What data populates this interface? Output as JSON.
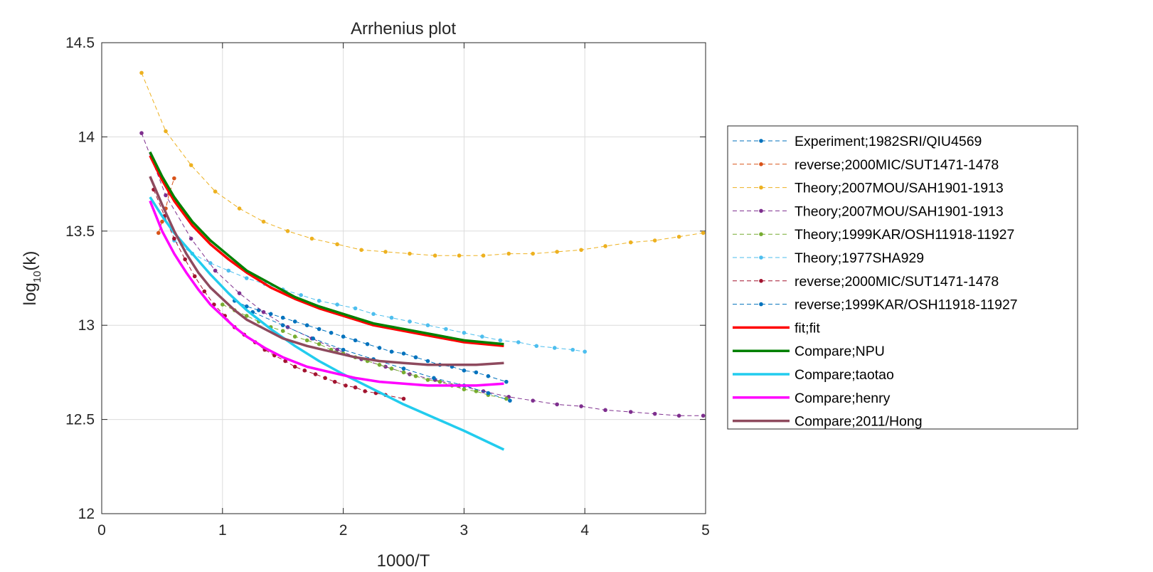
{
  "chart_data": {
    "type": "line",
    "title": "Arrhenius plot",
    "xlabel": "1000/T",
    "ylabel_base": "log",
    "ylabel_sub": "10",
    "ylabel_rest": "(k)",
    "xlim": [
      0,
      5
    ],
    "ylim": [
      12,
      14.5
    ],
    "xticks": [
      "0",
      "1",
      "2",
      "3",
      "4",
      "5"
    ],
    "yticks": [
      "12",
      "12.5",
      "13",
      "13.5",
      "14",
      "14.5"
    ],
    "grid": true,
    "legend_position": "right-outside",
    "series": [
      {
        "name": "Experiment;1982SRI/QIU4569",
        "color": "#0072BD",
        "style": "dashed-marker",
        "points": [
          [
            1.1,
            13.13
          ],
          [
            1.2,
            13.1
          ],
          [
            1.3,
            13.08
          ],
          [
            1.4,
            13.06
          ],
          [
            1.5,
            13.04
          ],
          [
            1.6,
            13.02
          ],
          [
            1.7,
            13.0
          ],
          [
            1.8,
            12.98
          ],
          [
            1.9,
            12.96
          ],
          [
            2.0,
            12.94
          ],
          [
            2.1,
            12.92
          ],
          [
            2.2,
            12.9
          ],
          [
            2.3,
            12.88
          ],
          [
            2.4,
            12.86
          ],
          [
            2.5,
            12.85
          ],
          [
            2.6,
            12.83
          ],
          [
            2.7,
            12.81
          ],
          [
            2.8,
            12.79
          ],
          [
            2.9,
            12.78
          ],
          [
            3.0,
            12.76
          ],
          [
            3.1,
            12.75
          ],
          [
            3.2,
            12.73
          ],
          [
            3.35,
            12.7
          ]
        ]
      },
      {
        "name": "reverse;2000MIC/SUT1471-1478",
        "color": "#D95319",
        "style": "dashed-marker",
        "points": [
          [
            0.47,
            13.49
          ],
          [
            0.5,
            13.55
          ],
          [
            0.53,
            13.62
          ],
          [
            0.56,
            13.7
          ],
          [
            0.6,
            13.78
          ]
        ]
      },
      {
        "name": "Theory;2007MOU/SAH1901-1913",
        "color": "#EDB120",
        "style": "dashed-marker",
        "points": [
          [
            0.33,
            14.34
          ],
          [
            0.53,
            14.03
          ],
          [
            0.74,
            13.85
          ],
          [
            0.94,
            13.71
          ],
          [
            1.14,
            13.62
          ],
          [
            1.34,
            13.55
          ],
          [
            1.54,
            13.5
          ],
          [
            1.74,
            13.46
          ],
          [
            1.95,
            13.43
          ],
          [
            2.15,
            13.4
          ],
          [
            2.35,
            13.39
          ],
          [
            2.55,
            13.38
          ],
          [
            2.76,
            13.37
          ],
          [
            2.96,
            13.37
          ],
          [
            3.16,
            13.37
          ],
          [
            3.37,
            13.38
          ],
          [
            3.57,
            13.38
          ],
          [
            3.77,
            13.39
          ],
          [
            3.97,
            13.4
          ],
          [
            4.17,
            13.42
          ],
          [
            4.38,
            13.44
          ],
          [
            4.58,
            13.45
          ],
          [
            4.78,
            13.47
          ],
          [
            4.98,
            13.49
          ]
        ]
      },
      {
        "name": "Theory;2007MOU/SAH1901-1913",
        "color": "#7E2F8E",
        "style": "dashed-marker",
        "points": [
          [
            0.33,
            14.02
          ],
          [
            0.53,
            13.69
          ],
          [
            0.74,
            13.46
          ],
          [
            0.94,
            13.29
          ],
          [
            1.14,
            13.17
          ],
          [
            1.34,
            13.07
          ],
          [
            1.54,
            12.99
          ],
          [
            1.74,
            12.93
          ],
          [
            1.95,
            12.87
          ],
          [
            2.15,
            12.82
          ],
          [
            2.35,
            12.78
          ],
          [
            2.55,
            12.74
          ],
          [
            2.76,
            12.71
          ],
          [
            2.96,
            12.68
          ],
          [
            3.16,
            12.65
          ],
          [
            3.37,
            12.62
          ],
          [
            3.57,
            12.6
          ],
          [
            3.77,
            12.58
          ],
          [
            3.97,
            12.57
          ],
          [
            4.17,
            12.55
          ],
          [
            4.38,
            12.54
          ],
          [
            4.58,
            12.53
          ],
          [
            4.78,
            12.52
          ],
          [
            4.98,
            12.52
          ]
        ]
      },
      {
        "name": "Theory;1999KAR/OSH11918-11927",
        "color": "#77AC30",
        "style": "dashed-marker",
        "points": [
          [
            1.0,
            13.11
          ],
          [
            1.1,
            13.08
          ],
          [
            1.2,
            13.05
          ],
          [
            1.3,
            13.02
          ],
          [
            1.4,
            12.99
          ],
          [
            1.5,
            12.97
          ],
          [
            1.6,
            12.94
          ],
          [
            1.7,
            12.92
          ],
          [
            1.8,
            12.9
          ],
          [
            1.9,
            12.87
          ],
          [
            2.0,
            12.85
          ],
          [
            2.1,
            12.83
          ],
          [
            2.2,
            12.81
          ],
          [
            2.3,
            12.79
          ],
          [
            2.4,
            12.77
          ],
          [
            2.5,
            12.75
          ],
          [
            2.6,
            12.73
          ],
          [
            2.7,
            12.71
          ],
          [
            2.8,
            12.7
          ],
          [
            2.9,
            12.68
          ],
          [
            3.0,
            12.66
          ],
          [
            3.1,
            12.65
          ],
          [
            3.2,
            12.63
          ],
          [
            3.35,
            12.61
          ]
        ]
      },
      {
        "name": "Theory;1977SHA929",
        "color": "#4DBEEE",
        "style": "dashed-marker",
        "points": [
          [
            0.6,
            13.45
          ],
          [
            0.75,
            13.38
          ],
          [
            0.9,
            13.33
          ],
          [
            1.05,
            13.29
          ],
          [
            1.2,
            13.25
          ],
          [
            1.35,
            13.22
          ],
          [
            1.5,
            13.19
          ],
          [
            1.65,
            13.16
          ],
          [
            1.8,
            13.13
          ],
          [
            1.95,
            13.11
          ],
          [
            2.1,
            13.09
          ],
          [
            2.25,
            13.06
          ],
          [
            2.4,
            13.04
          ],
          [
            2.55,
            13.02
          ],
          [
            2.7,
            13.0
          ],
          [
            2.85,
            12.98
          ],
          [
            3.0,
            12.96
          ],
          [
            3.15,
            12.94
          ],
          [
            3.3,
            12.92
          ],
          [
            3.45,
            12.91
          ],
          [
            3.6,
            12.89
          ],
          [
            3.75,
            12.88
          ],
          [
            3.9,
            12.87
          ],
          [
            4.0,
            12.86
          ]
        ]
      },
      {
        "name": "reverse;2000MIC/SUT1471-1478",
        "color": "#A2142F",
        "style": "dashed-marker",
        "points": [
          [
            0.43,
            13.72
          ],
          [
            0.52,
            13.58
          ],
          [
            0.6,
            13.46
          ],
          [
            0.69,
            13.35
          ],
          [
            0.77,
            13.26
          ],
          [
            0.85,
            13.18
          ],
          [
            0.93,
            13.11
          ],
          [
            1.02,
            13.05
          ],
          [
            1.1,
            12.99
          ],
          [
            1.18,
            12.95
          ],
          [
            1.27,
            12.91
          ],
          [
            1.35,
            12.87
          ],
          [
            1.43,
            12.84
          ],
          [
            1.52,
            12.81
          ],
          [
            1.6,
            12.78
          ],
          [
            1.68,
            12.76
          ],
          [
            1.77,
            12.74
          ],
          [
            1.85,
            12.72
          ],
          [
            1.93,
            12.7
          ],
          [
            2.02,
            12.68
          ],
          [
            2.1,
            12.67
          ],
          [
            2.18,
            12.65
          ],
          [
            2.27,
            12.64
          ],
          [
            2.35,
            12.63
          ],
          [
            2.5,
            12.61
          ]
        ]
      },
      {
        "name": "reverse;1999KAR/OSH11918-11927",
        "color": "#0072BD",
        "style": "dashed-marker",
        "points": [
          [
            1.25,
            13.07
          ],
          [
            1.5,
            13.0
          ],
          [
            1.75,
            12.93
          ],
          [
            2.0,
            12.87
          ],
          [
            2.25,
            12.82
          ],
          [
            2.5,
            12.77
          ],
          [
            2.75,
            12.72
          ],
          [
            3.0,
            12.68
          ],
          [
            3.2,
            12.64
          ],
          [
            3.38,
            12.6
          ]
        ]
      },
      {
        "name": "fit;fit",
        "color": "#FF0000",
        "style": "solid",
        "points": [
          [
            0.4,
            13.9
          ],
          [
            0.5,
            13.77
          ],
          [
            0.6,
            13.66
          ],
          [
            0.75,
            13.53
          ],
          [
            0.9,
            13.43
          ],
          [
            1.05,
            13.35
          ],
          [
            1.2,
            13.28
          ],
          [
            1.4,
            13.2
          ],
          [
            1.6,
            13.14
          ],
          [
            1.8,
            13.09
          ],
          [
            2.0,
            13.05
          ],
          [
            2.25,
            13.0
          ],
          [
            2.5,
            12.97
          ],
          [
            2.75,
            12.94
          ],
          [
            3.0,
            12.91
          ],
          [
            3.33,
            12.89
          ]
        ]
      },
      {
        "name": "Compare;NPU",
        "color": "#008000",
        "style": "solid",
        "points": [
          [
            0.4,
            13.92
          ],
          [
            0.5,
            13.79
          ],
          [
            0.6,
            13.68
          ],
          [
            0.75,
            13.55
          ],
          [
            0.9,
            13.45
          ],
          [
            1.05,
            13.37
          ],
          [
            1.2,
            13.29
          ],
          [
            1.4,
            13.22
          ],
          [
            1.6,
            13.15
          ],
          [
            1.8,
            13.1
          ],
          [
            2.0,
            13.06
          ],
          [
            2.25,
            13.01
          ],
          [
            2.5,
            12.98
          ],
          [
            2.75,
            12.95
          ],
          [
            3.0,
            12.92
          ],
          [
            3.33,
            12.9
          ]
        ]
      },
      {
        "name": "Compare;taotao",
        "color": "#22CCEE",
        "style": "solid",
        "points": [
          [
            0.4,
            13.68
          ],
          [
            0.5,
            13.58
          ],
          [
            0.6,
            13.49
          ],
          [
            0.75,
            13.38
          ],
          [
            0.9,
            13.27
          ],
          [
            1.05,
            13.17
          ],
          [
            1.2,
            13.08
          ],
          [
            1.4,
            12.98
          ],
          [
            1.6,
            12.89
          ],
          [
            1.8,
            12.81
          ],
          [
            2.0,
            12.74
          ],
          [
            2.25,
            12.66
          ],
          [
            2.5,
            12.58
          ],
          [
            2.75,
            12.51
          ],
          [
            3.0,
            12.44
          ],
          [
            3.33,
            12.34
          ]
        ]
      },
      {
        "name": "Compare;henry",
        "color": "#FF00FF",
        "style": "solid",
        "points": [
          [
            0.4,
            13.66
          ],
          [
            0.5,
            13.5
          ],
          [
            0.6,
            13.38
          ],
          [
            0.7,
            13.28
          ],
          [
            0.8,
            13.19
          ],
          [
            0.9,
            13.11
          ],
          [
            1.0,
            13.05
          ],
          [
            1.1,
            12.99
          ],
          [
            1.2,
            12.94
          ],
          [
            1.35,
            12.88
          ],
          [
            1.5,
            12.83
          ],
          [
            1.7,
            12.78
          ],
          [
            1.9,
            12.75
          ],
          [
            2.1,
            12.72
          ],
          [
            2.3,
            12.7
          ],
          [
            2.5,
            12.69
          ],
          [
            2.7,
            12.68
          ],
          [
            2.9,
            12.68
          ],
          [
            3.1,
            12.68
          ],
          [
            3.33,
            12.69
          ]
        ]
      },
      {
        "name": "Compare;2011/Hong",
        "color": "#8E4A5E",
        "style": "solid",
        "points": [
          [
            0.4,
            13.79
          ],
          [
            0.5,
            13.64
          ],
          [
            0.6,
            13.5
          ],
          [
            0.7,
            13.38
          ],
          [
            0.8,
            13.28
          ],
          [
            0.9,
            13.2
          ],
          [
            1.0,
            13.14
          ],
          [
            1.1,
            13.08
          ],
          [
            1.2,
            13.03
          ],
          [
            1.35,
            12.98
          ],
          [
            1.5,
            12.93
          ],
          [
            1.7,
            12.89
          ],
          [
            1.9,
            12.86
          ],
          [
            2.1,
            12.83
          ],
          [
            2.3,
            12.81
          ],
          [
            2.5,
            12.8
          ],
          [
            2.7,
            12.79
          ],
          [
            2.9,
            12.79
          ],
          [
            3.1,
            12.79
          ],
          [
            3.33,
            12.8
          ]
        ]
      }
    ]
  }
}
